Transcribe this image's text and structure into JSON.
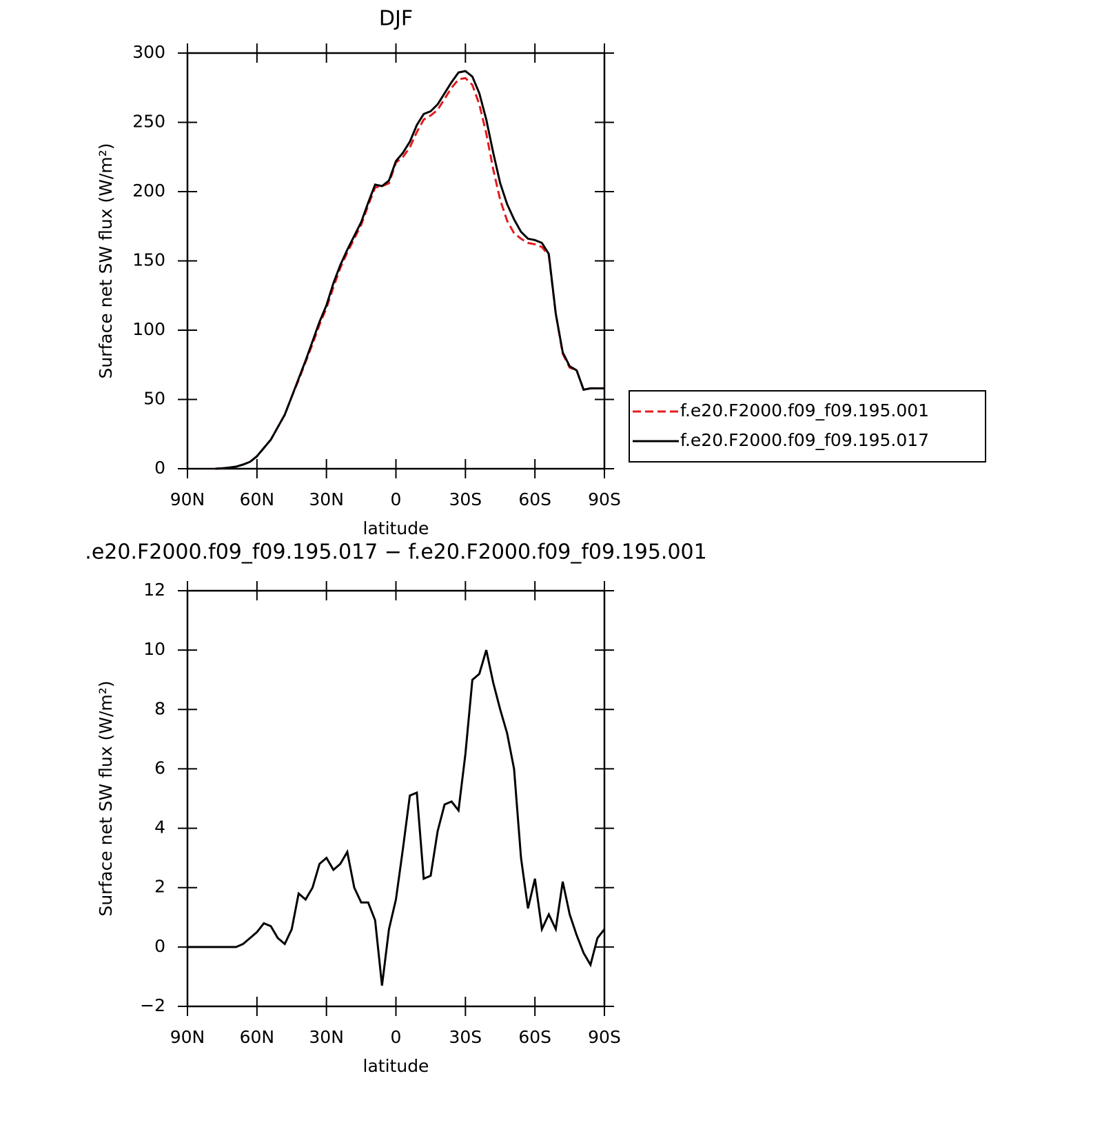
{
  "chart_data": [
    {
      "type": "line",
      "title": "DJF",
      "x_label": "latitude",
      "y_label": "Surface net SW flux (W/m²)",
      "x": [
        90,
        87,
        84,
        81,
        78,
        75,
        72,
        69,
        66,
        63,
        60,
        57,
        54,
        51,
        48,
        45,
        42,
        39,
        36,
        33,
        30,
        27,
        24,
        21,
        18,
        15,
        12,
        9,
        6,
        3,
        0,
        -3,
        -6,
        -9,
        -12,
        -15,
        -18,
        -21,
        -24,
        -27,
        -30,
        -33,
        -36,
        -39,
        -42,
        -45,
        -48,
        -51,
        -54,
        -57,
        -60,
        -63,
        -66,
        -69,
        -72,
        -75,
        -78,
        -81,
        -84,
        -87,
        -90
      ],
      "series": [
        {
          "name": "f.e20.F2000.f09_f09.195.001",
          "color": "#e41a1c",
          "line_style": "dashed",
          "values": [
            null,
            null,
            null,
            null,
            0,
            0.3,
            0.8,
            1.5,
            3,
            5,
            9,
            15,
            21,
            30,
            39,
            52,
            64,
            77,
            90,
            104,
            116,
            131,
            145,
            156,
            166,
            176,
            190,
            203,
            204,
            206,
            221,
            225,
            232,
            243,
            252,
            255,
            259,
            267,
            275,
            281,
            282,
            277,
            263,
            242,
            216,
            194,
            179,
            170,
            166,
            163,
            162,
            160,
            154,
            112,
            83,
            73,
            71,
            57,
            58,
            58,
            58
          ]
        },
        {
          "name": "f.e20.F2000.f09_f09.195.017",
          "color": "#000000",
          "line_style": "solid",
          "values": [
            null,
            null,
            null,
            null,
            0,
            0.3,
            0.8,
            1.5,
            3,
            5,
            9,
            15,
            21,
            30,
            39,
            52,
            65,
            78,
            92,
            106,
            118,
            134,
            147,
            158,
            168,
            178,
            192,
            205,
            204,
            208,
            222,
            228,
            236,
            248,
            256,
            258,
            263,
            271,
            279,
            286,
            287,
            283,
            271,
            252,
            228,
            206,
            191,
            180,
            171,
            166,
            165,
            163,
            155,
            112,
            84,
            74,
            71,
            57,
            58,
            58,
            58
          ]
        }
      ],
      "xlim": [
        90,
        -90
      ],
      "xticks": [
        {
          "value": 90,
          "label": "90N"
        },
        {
          "value": 60,
          "label": "60N"
        },
        {
          "value": 30,
          "label": "30N"
        },
        0,
        {
          "value": -30,
          "label": "30S"
        },
        {
          "value": -60,
          "label": "60S"
        },
        {
          "value": -90,
          "label": "90S"
        }
      ],
      "ylim": [
        0,
        300
      ],
      "yticks": [
        0,
        50,
        100,
        150,
        200,
        250,
        300
      ],
      "legend": "right"
    },
    {
      "type": "line",
      "title": ".e20.F2000.f09_f09.195.017 − f.e20.F2000.f09_f09.195.001",
      "x_label": "latitude",
      "y_label": "Surface net SW flux (W/m²)",
      "x": [
        90,
        87,
        84,
        81,
        78,
        75,
        72,
        69,
        66,
        63,
        60,
        57,
        54,
        51,
        48,
        45,
        42,
        39,
        36,
        33,
        30,
        27,
        24,
        21,
        18,
        15,
        12,
        9,
        6,
        3,
        0,
        -3,
        -6,
        -9,
        -12,
        -15,
        -18,
        -21,
        -24,
        -27,
        -30,
        -33,
        -36,
        -39,
        -42,
        -45,
        -48,
        -51,
        -54,
        -57,
        -60,
        -63,
        -66,
        -69,
        -72,
        -75,
        -78,
        -81,
        -84,
        -87,
        -90
      ],
      "series": [
        {
          "color": "#000000",
          "line_style": "solid",
          "values": [
            0,
            0,
            0,
            0,
            0,
            0,
            0,
            0,
            0.1,
            0.3,
            0.5,
            0.8,
            0.7,
            0.3,
            0.1,
            0.6,
            1.8,
            1.6,
            2.0,
            2.8,
            3.0,
            2.6,
            2.8,
            3.2,
            2.0,
            1.5,
            1.5,
            0.9,
            -1.3,
            0.6,
            1.6,
            3.3,
            5.1,
            5.2,
            2.3,
            2.4,
            3.9,
            4.8,
            4.9,
            4.6,
            6.5,
            9.0,
            9.2,
            10.0,
            8.9,
            8.0,
            7.2,
            6.0,
            3.0,
            1.3,
            2.3,
            0.6,
            1.1,
            0.6,
            2.2,
            1.1,
            0.4,
            -0.2,
            -0.6,
            0.3,
            0.6
          ]
        }
      ],
      "xlim": [
        90,
        -90
      ],
      "xticks": [
        {
          "value": 90,
          "label": "90N"
        },
        {
          "value": 60,
          "label": "60N"
        },
        {
          "value": 30,
          "label": "30N"
        },
        0,
        {
          "value": -30,
          "label": "30S"
        },
        {
          "value": -60,
          "label": "60S"
        },
        {
          "value": -90,
          "label": "90S"
        }
      ],
      "ylim": [
        -2,
        12
      ],
      "yticks": [
        {
          "value": -2,
          "label": "−2"
        },
        0,
        2,
        4,
        6,
        8,
        10,
        12
      ]
    }
  ]
}
